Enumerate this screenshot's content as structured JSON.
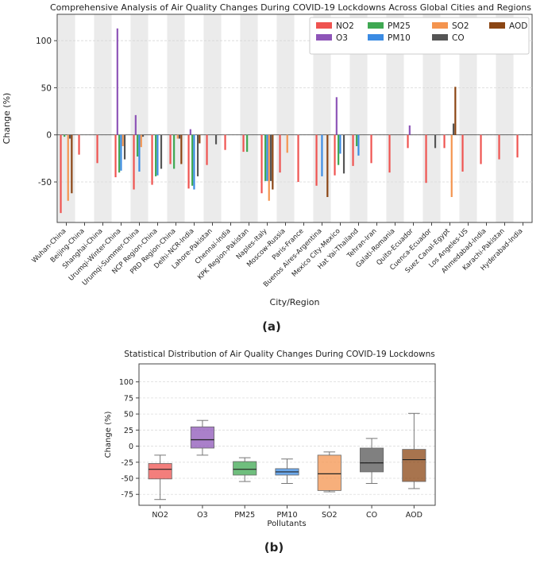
{
  "palette": {
    "NO2": "#ef5350",
    "O3": "#8e55b8",
    "PM25": "#3fa852",
    "PM10": "#3b8be3",
    "SO2": "#f4944f",
    "CO": "#555555",
    "AOD": "#8b4513"
  },
  "panel_a_label": "(a)",
  "panel_b_label": "(b)",
  "chart_data": [
    {
      "type": "bar",
      "title": "Comprehensive Analysis of Air Quality Changes During COVID-19 Lockdowns Across Global Cities and Regions",
      "xlabel": "City/Region",
      "ylabel": "Change (%)",
      "ylim": [
        -93,
        128
      ],
      "yticks": [
        -50,
        0,
        50,
        100
      ],
      "grid": true,
      "legend_position": "top-right",
      "legend_order": [
        "NO2",
        "O3",
        "PM25",
        "PM10",
        "SO2",
        "CO",
        "AOD"
      ],
      "categories": [
        "Wuhan-China",
        "Beijing-China",
        "Shanghai-China",
        "Urumqi-Winter-China",
        "Urumqi-Summer-China",
        "NCP Region-China",
        "PRD Region-China",
        "Delhi-NCR-India",
        "Lahore-Pakistan",
        "Chennai-India",
        "KPK Region-Pakistan",
        "Naples-Italy",
        "Moscow-Russia",
        "Paris-France",
        "Buenos Aires-Argentina",
        "Mexico City-Mexico",
        "Hat Yai-Thailand",
        "Tehran-Iran",
        "Galati-Romania",
        "Quito-Ecuador",
        "Cuenca-Ecuador",
        "Suez Canal-Egypt",
        "Los Angeles-US",
        "Ahmedabad-India",
        "Karachi-Pakistan",
        "Hyderabad-India"
      ],
      "series": [
        {
          "name": "NO2",
          "values": [
            -83,
            -21,
            -30,
            -45,
            -58,
            -53,
            -31,
            -57,
            -32,
            -16,
            -18,
            -62,
            -40,
            -50,
            -54,
            -43,
            -33,
            -30,
            -40,
            -14,
            -51,
            -14,
            -39,
            -31,
            -26,
            -24
          ]
        },
        {
          "name": "O3",
          "values": [
            null,
            null,
            null,
            113,
            21,
            null,
            null,
            6,
            null,
            null,
            null,
            null,
            null,
            null,
            null,
            40,
            null,
            null,
            null,
            10,
            null,
            null,
            null,
            null,
            null,
            null
          ]
        },
        {
          "name": "PM25",
          "values": [
            -2,
            null,
            null,
            -40,
            -23,
            -44,
            -36,
            -54,
            null,
            null,
            -18,
            -49,
            null,
            null,
            null,
            -32,
            -12,
            null,
            null,
            null,
            null,
            null,
            null,
            null,
            null,
            null
          ]
        },
        {
          "name": "PM10",
          "values": [
            null,
            null,
            null,
            -38,
            -39,
            -43,
            null,
            -58,
            null,
            null,
            null,
            -49,
            null,
            null,
            -44,
            -20,
            -22,
            null,
            null,
            null,
            null,
            null,
            null,
            null,
            null,
            null
          ]
        },
        {
          "name": "SO2",
          "values": [
            -70,
            null,
            null,
            -12,
            -13,
            null,
            -4,
            null,
            null,
            null,
            null,
            -70,
            -19,
            null,
            null,
            null,
            null,
            null,
            null,
            null,
            null,
            -66,
            null,
            null,
            null,
            null
          ]
        },
        {
          "name": "CO",
          "values": [
            -4,
            null,
            null,
            -26,
            -2,
            -36,
            -4,
            -44,
            -10,
            null,
            null,
            -49,
            null,
            null,
            null,
            -41,
            null,
            null,
            null,
            null,
            -14,
            12,
            null,
            null,
            null,
            null
          ]
        },
        {
          "name": "AOD",
          "values": [
            -62,
            null,
            null,
            null,
            null,
            null,
            -31,
            -9,
            null,
            null,
            null,
            -58,
            null,
            null,
            -66,
            null,
            null,
            null,
            null,
            null,
            null,
            51,
            null,
            null,
            null,
            null
          ]
        }
      ]
    },
    {
      "type": "box",
      "title": "Statistical Distribution of Air Quality Changes During COVID-19 Lockdowns",
      "xlabel": "Pollutants",
      "ylabel": "Change (%)",
      "ylim": [
        -92,
        128
      ],
      "yticks": [
        -75,
        -50,
        -25,
        0,
        25,
        50,
        75,
        100
      ],
      "grid": true,
      "categories": [
        "NO2",
        "O3",
        "PM25",
        "PM10",
        "SO2",
        "CO",
        "AOD"
      ],
      "boxes": [
        {
          "name": "NO2",
          "min": -83,
          "q1": -51,
          "median": -36,
          "q3": -27,
          "max": -14
        },
        {
          "name": "O3",
          "min": -14,
          "q1": -3,
          "median": 10,
          "q3": 30,
          "max": 40
        },
        {
          "name": "PM25",
          "min": -55,
          "q1": -45,
          "median": -36,
          "q3": -24,
          "max": -18
        },
        {
          "name": "PM10",
          "min": -58,
          "q1": -45,
          "median": -40,
          "q3": -35,
          "max": -20
        },
        {
          "name": "SO2",
          "min": -71,
          "q1": -69,
          "median": -43,
          "q3": -14,
          "max": -9
        },
        {
          "name": "CO",
          "min": -58,
          "q1": -40,
          "median": -26,
          "q3": -3,
          "max": 12
        },
        {
          "name": "AOD",
          "min": -66,
          "q1": -55,
          "median": -21,
          "q3": -5,
          "max": 51
        }
      ]
    }
  ]
}
